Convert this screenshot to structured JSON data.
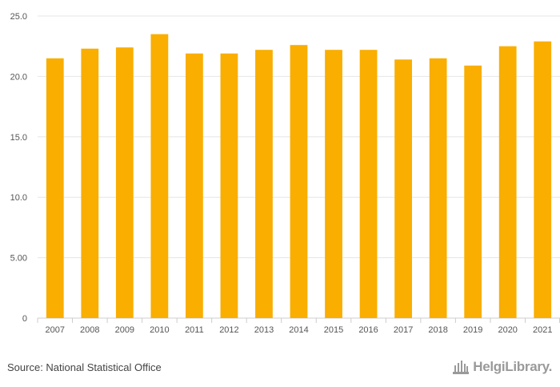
{
  "chart_data": {
    "type": "bar",
    "categories": [
      "2007",
      "2008",
      "2009",
      "2010",
      "2011",
      "2012",
      "2013",
      "2014",
      "2015",
      "2016",
      "2017",
      "2018",
      "2019",
      "2020",
      "2021"
    ],
    "series": [
      {
        "values": [
          21.5,
          22.3,
          22.4,
          23.5,
          21.9,
          21.9,
          22.2,
          22.6,
          22.2,
          22.2,
          21.4,
          21.5,
          20.9,
          22.5,
          22.9
        ]
      }
    ],
    "yticks": [
      "0",
      "5.00",
      "10.0",
      "15.0",
      "20.0",
      "25.0"
    ],
    "ylim": [
      0,
      25
    ],
    "grid": true,
    "bar_color": "#f9ae00",
    "grid_color": "#e6e6e6"
  },
  "footer": {
    "source": "Source: National Statistical Office",
    "brand": "HelgiLibrary."
  }
}
